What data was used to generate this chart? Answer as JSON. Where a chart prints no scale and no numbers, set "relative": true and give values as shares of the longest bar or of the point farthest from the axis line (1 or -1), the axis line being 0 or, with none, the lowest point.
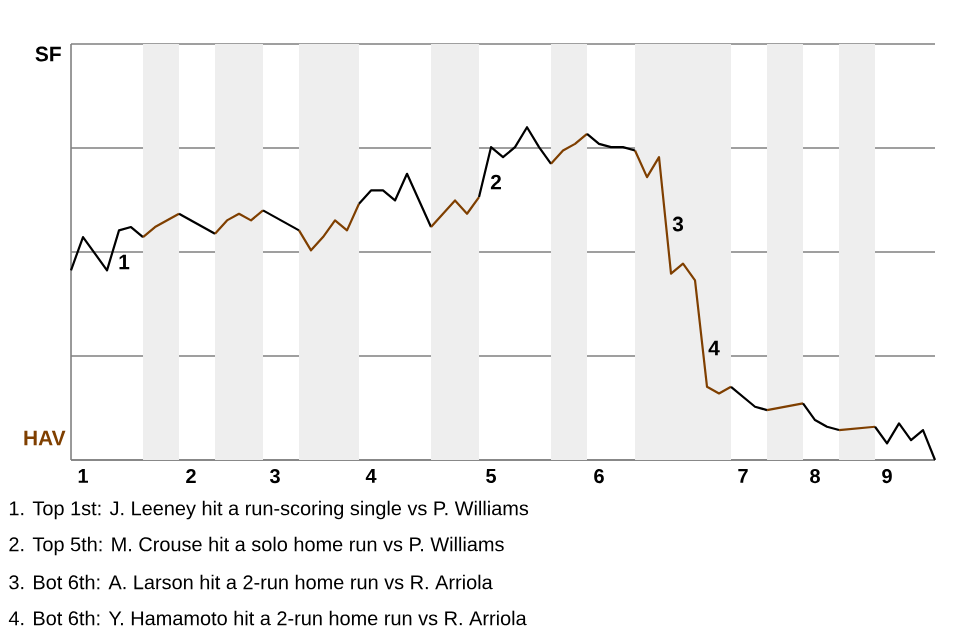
{
  "chart_data": {
    "type": "line",
    "relative": true,
    "categories": [
      null,
      "1",
      null,
      null,
      null,
      null,
      null,
      null,
      null,
      null,
      "2",
      null,
      null,
      null,
      null,
      null,
      null,
      "3",
      null,
      null,
      null,
      null,
      null,
      null,
      null,
      "4",
      null,
      null,
      null,
      null,
      null,
      null,
      null,
      null,
      null,
      "5",
      null,
      null,
      null,
      null,
      null,
      null,
      null,
      null,
      "6",
      null,
      null,
      null,
      null,
      null,
      null,
      null,
      null,
      null,
      null,
      null,
      "7",
      null,
      null,
      null,
      null,
      null,
      "8",
      null,
      null,
      null,
      null,
      null,
      "9",
      null,
      null,
      null,
      null
    ],
    "grid": "y",
    "marker": "none",
    "line_style": "solid",
    "series": [
      {
        "color": "#000000",
        "values": [
          0.57,
          0.67,
          null,
          0.57,
          0.69,
          0.7,
          0.67,
          null,
          null,
          null,
          null,
          null,
          null,
          null,
          null,
          null,
          null,
          null,
          null,
          null,
          null,
          null,
          null,
          null,
          null,
          null,
          null,
          null,
          null,
          null,
          null,
          null,
          null,
          null,
          null,
          null,
          null,
          null,
          null,
          null,
          null,
          null,
          null,
          null,
          null,
          null,
          null,
          null,
          null,
          null,
          null,
          null,
          null,
          null,
          null,
          null,
          null,
          null,
          null,
          null,
          null,
          null,
          null,
          null,
          null,
          null,
          null,
          null,
          null,
          null,
          null,
          null,
          null
        ]
      },
      {
        "color": "#7f3f00",
        "values": [
          null,
          null,
          null,
          null,
          null,
          null,
          0.67,
          0.7,
          null,
          0.74,
          null,
          null,
          null,
          null,
          null,
          null,
          null,
          null,
          null,
          null,
          null,
          null,
          null,
          null,
          null,
          null,
          null,
          null,
          null,
          null,
          null,
          null,
          null,
          null,
          null,
          null,
          null,
          null,
          null,
          null,
          null,
          null,
          null,
          null,
          null,
          null,
          null,
          null,
          null,
          null,
          null,
          null,
          null,
          null,
          null,
          null,
          null,
          null,
          null,
          null,
          null,
          null,
          null,
          null,
          null,
          null,
          null,
          null,
          null,
          null,
          null,
          null,
          null
        ]
      },
      {
        "color": "#000000",
        "values": [
          null,
          null,
          null,
          null,
          null,
          null,
          null,
          null,
          null,
          0.74,
          null,
          null,
          0.68,
          null,
          null,
          null,
          null,
          null,
          null,
          null,
          null,
          null,
          null,
          null,
          null,
          null,
          null,
          null,
          null,
          null,
          null,
          null,
          null,
          null,
          null,
          null,
          null,
          null,
          null,
          null,
          null,
          null,
          null,
          null,
          null,
          null,
          null,
          null,
          null,
          null,
          null,
          null,
          null,
          null,
          null,
          null,
          null,
          null,
          null,
          null,
          null,
          null,
          null,
          null,
          null,
          null,
          null,
          null,
          null,
          null,
          null,
          null,
          null
        ]
      },
      {
        "color": "#7f3f00",
        "values": [
          null,
          null,
          null,
          null,
          null,
          null,
          null,
          null,
          null,
          null,
          null,
          null,
          0.68,
          0.72,
          0.74,
          0.72,
          0.75,
          null,
          null,
          null,
          null,
          null,
          null,
          null,
          null,
          null,
          null,
          null,
          null,
          null,
          null,
          null,
          null,
          null,
          null,
          null,
          null,
          null,
          null,
          null,
          null,
          null,
          null,
          null,
          null,
          null,
          null,
          null,
          null,
          null,
          null,
          null,
          null,
          null,
          null,
          null,
          null,
          null,
          null,
          null,
          null,
          null,
          null,
          null,
          null,
          null,
          null,
          null,
          null,
          null,
          null,
          null,
          null
        ]
      },
      {
        "color": "#000000",
        "values": [
          null,
          null,
          null,
          null,
          null,
          null,
          null,
          null,
          null,
          null,
          null,
          null,
          null,
          null,
          null,
          null,
          0.75,
          null,
          null,
          0.69,
          null,
          null,
          null,
          null,
          null,
          null,
          null,
          null,
          null,
          null,
          null,
          null,
          null,
          null,
          null,
          null,
          null,
          null,
          null,
          null,
          null,
          null,
          null,
          null,
          null,
          null,
          null,
          null,
          null,
          null,
          null,
          null,
          null,
          null,
          null,
          null,
          null,
          null,
          null,
          null,
          null,
          null,
          null,
          null,
          null,
          null,
          null,
          null,
          null,
          null,
          null,
          null,
          null
        ]
      },
      {
        "color": "#7f3f00",
        "values": [
          null,
          null,
          null,
          null,
          null,
          null,
          null,
          null,
          null,
          null,
          null,
          null,
          null,
          null,
          null,
          null,
          null,
          null,
          null,
          0.69,
          0.63,
          0.67,
          0.72,
          0.69,
          0.77,
          null,
          null,
          null,
          null,
          null,
          null,
          null,
          null,
          null,
          null,
          null,
          null,
          null,
          null,
          null,
          null,
          null,
          null,
          null,
          null,
          null,
          null,
          null,
          null,
          null,
          null,
          null,
          null,
          null,
          null,
          null,
          null,
          null,
          null,
          null,
          null,
          null,
          null,
          null,
          null,
          null,
          null,
          null,
          null,
          null,
          null,
          null,
          null
        ]
      },
      {
        "color": "#000000",
        "values": [
          null,
          null,
          null,
          null,
          null,
          null,
          null,
          null,
          null,
          null,
          null,
          null,
          null,
          null,
          null,
          null,
          null,
          null,
          null,
          null,
          null,
          null,
          null,
          null,
          0.77,
          0.81,
          0.81,
          0.78,
          0.86,
          null,
          0.7,
          null,
          null,
          null,
          null,
          null,
          null,
          null,
          null,
          null,
          null,
          null,
          null,
          null,
          null,
          null,
          null,
          null,
          null,
          null,
          null,
          null,
          null,
          null,
          null,
          null,
          null,
          null,
          null,
          null,
          null,
          null,
          null,
          null,
          null,
          null,
          null,
          null,
          null,
          null,
          null,
          null,
          null
        ]
      },
      {
        "color": "#7f3f00",
        "values": [
          null,
          null,
          null,
          null,
          null,
          null,
          null,
          null,
          null,
          null,
          null,
          null,
          null,
          null,
          null,
          null,
          null,
          null,
          null,
          null,
          null,
          null,
          null,
          null,
          null,
          null,
          null,
          null,
          null,
          null,
          0.7,
          0.74,
          0.78,
          0.74,
          0.79,
          null,
          null,
          null,
          null,
          null,
          null,
          null,
          null,
          null,
          null,
          null,
          null,
          null,
          null,
          null,
          null,
          null,
          null,
          null,
          null,
          null,
          null,
          null,
          null,
          null,
          null,
          null,
          null,
          null,
          null,
          null,
          null,
          null,
          null,
          null,
          null,
          null,
          null
        ]
      },
      {
        "color": "#000000",
        "values": [
          null,
          null,
          null,
          null,
          null,
          null,
          null,
          null,
          null,
          null,
          null,
          null,
          null,
          null,
          null,
          null,
          null,
          null,
          null,
          null,
          null,
          null,
          null,
          null,
          null,
          null,
          null,
          null,
          null,
          null,
          null,
          null,
          null,
          null,
          0.79,
          0.94,
          0.91,
          0.94,
          1,
          0.94,
          0.89,
          null,
          null,
          null,
          null,
          null,
          null,
          null,
          null,
          null,
          null,
          null,
          null,
          null,
          null,
          null,
          null,
          null,
          null,
          null,
          null,
          null,
          null,
          null,
          null,
          null,
          null,
          null,
          null,
          null,
          null,
          null,
          null
        ]
      },
      {
        "color": "#7f3f00",
        "values": [
          null,
          null,
          null,
          null,
          null,
          null,
          null,
          null,
          null,
          null,
          null,
          null,
          null,
          null,
          null,
          null,
          null,
          null,
          null,
          null,
          null,
          null,
          null,
          null,
          null,
          null,
          null,
          null,
          null,
          null,
          null,
          null,
          null,
          null,
          null,
          null,
          null,
          null,
          null,
          null,
          0.89,
          0.93,
          0.95,
          0.98,
          null,
          null,
          null,
          null,
          null,
          null,
          null,
          null,
          null,
          null,
          null,
          null,
          null,
          null,
          null,
          null,
          null,
          null,
          null,
          null,
          null,
          null,
          null,
          null,
          null,
          null,
          null,
          null,
          null
        ]
      },
      {
        "color": "#000000",
        "values": [
          null,
          null,
          null,
          null,
          null,
          null,
          null,
          null,
          null,
          null,
          null,
          null,
          null,
          null,
          null,
          null,
          null,
          null,
          null,
          null,
          null,
          null,
          null,
          null,
          null,
          null,
          null,
          null,
          null,
          null,
          null,
          null,
          null,
          null,
          null,
          null,
          null,
          null,
          null,
          null,
          null,
          null,
          null,
          0.98,
          0.95,
          0.94,
          0.94,
          0.93,
          null,
          null,
          null,
          null,
          null,
          null,
          null,
          null,
          null,
          null,
          null,
          null,
          null,
          null,
          null,
          null,
          null,
          null,
          null,
          null,
          null,
          null,
          null,
          null,
          null
        ]
      },
      {
        "color": "#7f3f00",
        "values": [
          null,
          null,
          null,
          null,
          null,
          null,
          null,
          null,
          null,
          null,
          null,
          null,
          null,
          null,
          null,
          null,
          null,
          null,
          null,
          null,
          null,
          null,
          null,
          null,
          null,
          null,
          null,
          null,
          null,
          null,
          null,
          null,
          null,
          null,
          null,
          null,
          null,
          null,
          null,
          null,
          null,
          null,
          null,
          null,
          null,
          null,
          null,
          0.93,
          0.85,
          0.91,
          0.56,
          0.59,
          0.54,
          0.22,
          0.2,
          0.22,
          null,
          null,
          null,
          null,
          null,
          null,
          null,
          null,
          null,
          null,
          null,
          null,
          null,
          null,
          null,
          null,
          null
        ]
      },
      {
        "color": "#000000",
        "values": [
          null,
          null,
          null,
          null,
          null,
          null,
          null,
          null,
          null,
          null,
          null,
          null,
          null,
          null,
          null,
          null,
          null,
          null,
          null,
          null,
          null,
          null,
          null,
          null,
          null,
          null,
          null,
          null,
          null,
          null,
          null,
          null,
          null,
          null,
          null,
          null,
          null,
          null,
          null,
          null,
          null,
          null,
          null,
          null,
          null,
          null,
          null,
          null,
          null,
          null,
          null,
          null,
          null,
          null,
          null,
          0.22,
          0.19,
          0.16,
          0.15,
          null,
          null,
          null,
          null,
          null,
          null,
          null,
          null,
          null,
          null,
          null,
          null,
          null,
          null
        ]
      },
      {
        "color": "#7f3f00",
        "values": [
          null,
          null,
          null,
          null,
          null,
          null,
          null,
          null,
          null,
          null,
          null,
          null,
          null,
          null,
          null,
          null,
          null,
          null,
          null,
          null,
          null,
          null,
          null,
          null,
          null,
          null,
          null,
          null,
          null,
          null,
          null,
          null,
          null,
          null,
          null,
          null,
          null,
          null,
          null,
          null,
          null,
          null,
          null,
          null,
          null,
          null,
          null,
          null,
          null,
          null,
          null,
          null,
          null,
          null,
          null,
          null,
          null,
          null,
          0.15,
          null,
          null,
          0.17,
          null,
          null,
          null,
          null,
          null,
          null,
          null,
          null,
          null,
          null,
          null
        ]
      },
      {
        "color": "#000000",
        "values": [
          null,
          null,
          null,
          null,
          null,
          null,
          null,
          null,
          null,
          null,
          null,
          null,
          null,
          null,
          null,
          null,
          null,
          null,
          null,
          null,
          null,
          null,
          null,
          null,
          null,
          null,
          null,
          null,
          null,
          null,
          null,
          null,
          null,
          null,
          null,
          null,
          null,
          null,
          null,
          null,
          null,
          null,
          null,
          null,
          null,
          null,
          null,
          null,
          null,
          null,
          null,
          null,
          null,
          null,
          null,
          null,
          null,
          null,
          null,
          null,
          null,
          0.17,
          0.12,
          0.1,
          0.09,
          null,
          null,
          null,
          null,
          null,
          null,
          null,
          null
        ]
      },
      {
        "color": "#7f3f00",
        "values": [
          null,
          null,
          null,
          null,
          null,
          null,
          null,
          null,
          null,
          null,
          null,
          null,
          null,
          null,
          null,
          null,
          null,
          null,
          null,
          null,
          null,
          null,
          null,
          null,
          null,
          null,
          null,
          null,
          null,
          null,
          null,
          null,
          null,
          null,
          null,
          null,
          null,
          null,
          null,
          null,
          null,
          null,
          null,
          null,
          null,
          null,
          null,
          null,
          null,
          null,
          null,
          null,
          null,
          null,
          null,
          null,
          null,
          null,
          null,
          null,
          null,
          null,
          null,
          null,
          0.09,
          null,
          null,
          0.1,
          null,
          null,
          null,
          null,
          null
        ]
      },
      {
        "color": "#000000",
        "values": [
          null,
          null,
          null,
          null,
          null,
          null,
          null,
          null,
          null,
          null,
          null,
          null,
          null,
          null,
          null,
          null,
          null,
          null,
          null,
          null,
          null,
          null,
          null,
          null,
          null,
          null,
          null,
          null,
          null,
          null,
          null,
          null,
          null,
          null,
          null,
          null,
          null,
          null,
          null,
          null,
          null,
          null,
          null,
          null,
          null,
          null,
          null,
          null,
          null,
          null,
          null,
          null,
          null,
          null,
          null,
          null,
          null,
          null,
          null,
          null,
          null,
          null,
          null,
          null,
          null,
          null,
          null,
          0.1,
          0.05,
          0.11,
          0.06,
          0.09,
          0
        ]
      }
    ],
    "annotations": [
      "SF",
      "HAV",
      "1",
      "2",
      "3",
      "4",
      "1. Top 1st: J. Leeney hit a run-scoring single vs P. Williams",
      "2. Top 5th: M. Crouse hit a solo home run vs P. Williams",
      "3. Bot 6th: A. Larson hit a 2-run home run vs R. Arriola",
      "4. Bot 6th: Y. Hamamoto hit a 2-run home run vs R. Arriola"
    ]
  }
}
